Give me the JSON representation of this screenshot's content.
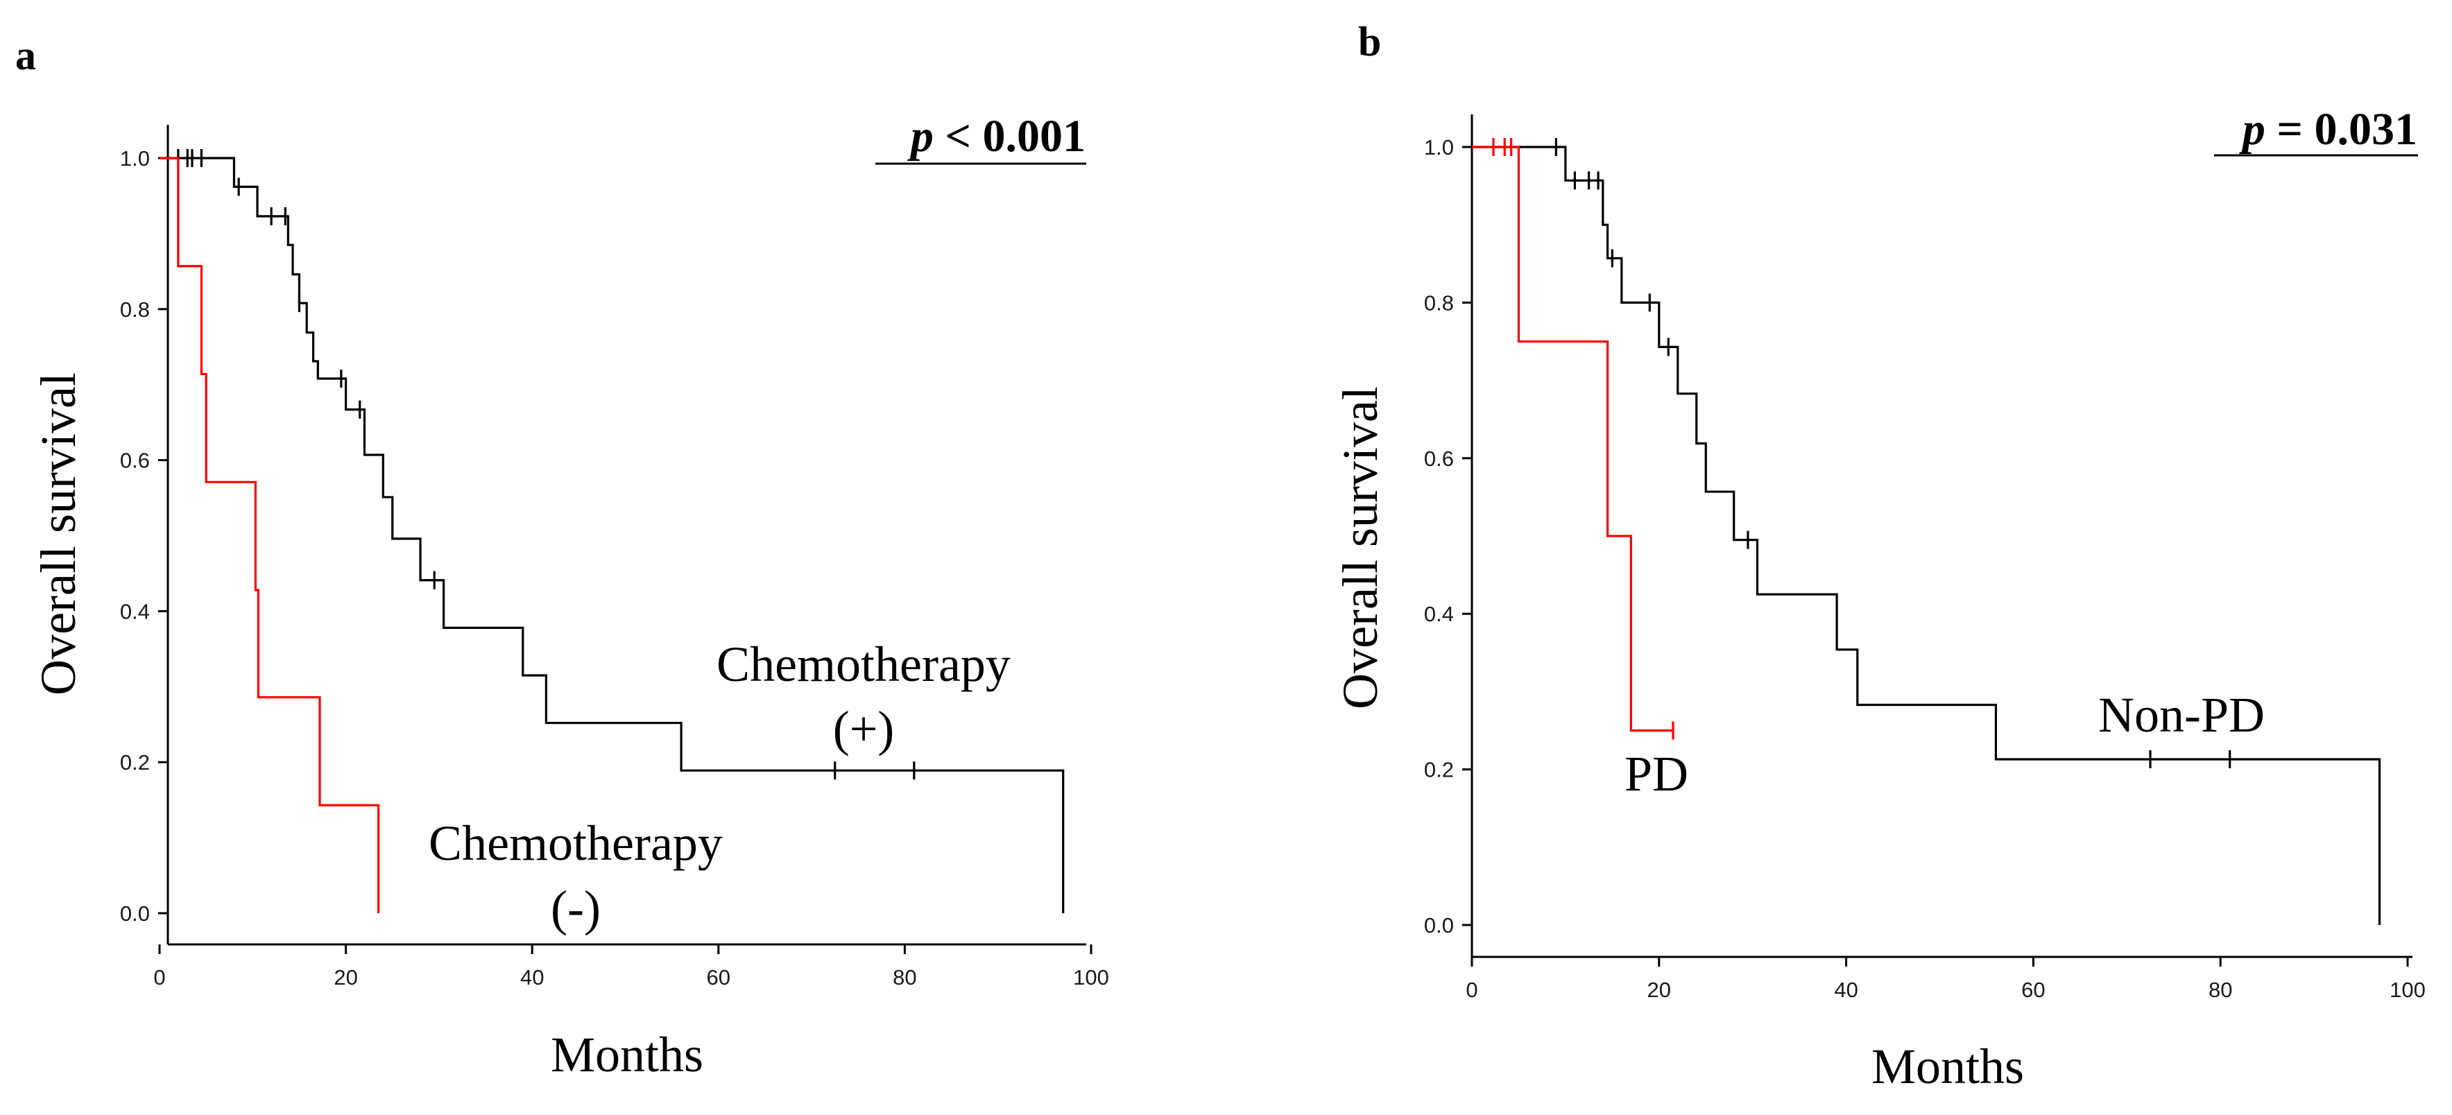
{
  "colors": {
    "group1": "#000000",
    "group2": "#ff0000"
  },
  "chart_data": [
    {
      "panel_label": "a",
      "type": "line",
      "step": true,
      "title": "",
      "xlabel": "Months",
      "ylabel": "Overall survival",
      "xlim": [
        0,
        100
      ],
      "ylim": [
        0,
        1
      ],
      "xticks": [
        0,
        20,
        40,
        60,
        80,
        100
      ],
      "yticks": [
        "0.0",
        "0.2",
        "0.4",
        "0.6",
        "0.8",
        "1.0"
      ],
      "p_label": "p",
      "p_rest": " < 0.001",
      "series": [
        {
          "name": "Chemotherapy (+)",
          "label_lines": [
            "Chemotherapy",
            "(+)"
          ],
          "color": "#000000",
          "steps": [
            [
              0,
              1.0
            ],
            [
              8,
              0.962
            ],
            [
              10.5,
              0.923
            ],
            [
              13.8,
              0.885
            ],
            [
              14.3,
              0.846
            ],
            [
              15,
              0.808
            ],
            [
              15.8,
              0.769
            ],
            [
              16.5,
              0.731
            ],
            [
              17,
              0.708
            ],
            [
              20,
              0.667
            ],
            [
              22,
              0.607
            ],
            [
              24,
              0.551
            ],
            [
              25,
              0.496
            ],
            [
              28,
              0.441
            ],
            [
              30.5,
              0.378
            ],
            [
              39,
              0.315
            ],
            [
              41.5,
              0.252
            ],
            [
              56,
              0.189
            ],
            [
              97,
              0.0
            ]
          ],
          "censor_x": [
            2,
            3,
            3.5,
            4.5,
            8.5,
            12,
            13.5,
            15,
            19.5,
            21.5,
            29.5,
            72.5,
            81
          ]
        },
        {
          "name": "Chemotherapy (-)",
          "label_lines": [
            "Chemotherapy",
            "(-)"
          ],
          "color": "#ff0000",
          "steps": [
            [
              0,
              1.0
            ],
            [
              2,
              0.857
            ],
            [
              4.5,
              0.714
            ],
            [
              5,
              0.571
            ],
            [
              10.3,
              0.428
            ],
            [
              10.6,
              0.286
            ],
            [
              17.2,
              0.143
            ],
            [
              23.5,
              0.0
            ]
          ],
          "censor_x": []
        }
      ]
    },
    {
      "panel_label": "b",
      "type": "line",
      "step": true,
      "title": "",
      "xlabel": "Months",
      "ylabel": "Overall survival",
      "xlim": [
        0,
        100
      ],
      "ylim": [
        0,
        1
      ],
      "xticks": [
        0,
        20,
        40,
        60,
        80,
        100
      ],
      "yticks": [
        "0.0",
        "0.2",
        "0.4",
        "0.6",
        "0.8",
        "1.0"
      ],
      "p_label": "p",
      "p_rest": " = 0.031",
      "series": [
        {
          "name": "Non-PD",
          "label_lines": [
            "Non-PD"
          ],
          "color": "#000000",
          "steps": [
            [
              0,
              1.0
            ],
            [
              10,
              0.957
            ],
            [
              14,
              0.9
            ],
            [
              14.5,
              0.857
            ],
            [
              16,
              0.8
            ],
            [
              20,
              0.743
            ],
            [
              22,
              0.683
            ],
            [
              24,
              0.619
            ],
            [
              25,
              0.557
            ],
            [
              28,
              0.495
            ],
            [
              30.5,
              0.425
            ],
            [
              39,
              0.354
            ],
            [
              41.2,
              0.283
            ],
            [
              56,
              0.213
            ],
            [
              97,
              0.0
            ]
          ],
          "censor_x": [
            9,
            11,
            12.5,
            13.5,
            15,
            19,
            21,
            29.5,
            72.5,
            81
          ]
        },
        {
          "name": "PD",
          "label_lines": [
            "PD"
          ],
          "color": "#ff0000",
          "steps": [
            [
              0,
              1.0
            ],
            [
              5,
              0.75
            ],
            [
              14.5,
              0.5
            ],
            [
              17,
              0.25
            ]
          ],
          "end_x": 21.5,
          "censor_x": [
            2.3,
            3.5,
            4.2,
            21.5
          ]
        }
      ]
    }
  ]
}
